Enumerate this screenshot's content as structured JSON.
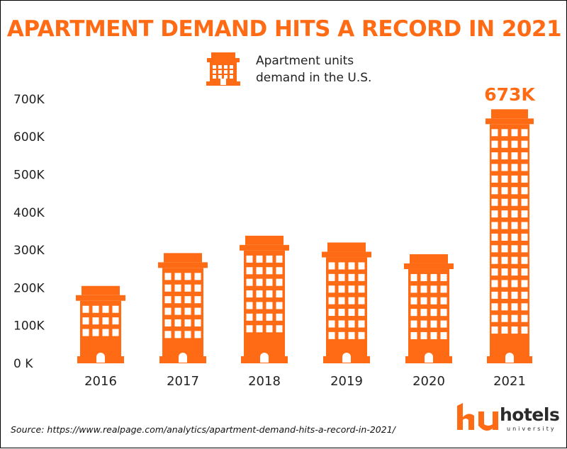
{
  "header": {
    "title": "APARTMENT DEMAND HITS A RECORD IN 2021"
  },
  "legend": {
    "line1": "Apartment units",
    "line2": "demand in the U.S.",
    "icon": "building-icon"
  },
  "footer": {
    "source": "Source: https://www.realpage.com/analytics/apartment-demand-hits-a-record-in-2021/",
    "logo_name": "hotels",
    "logo_sub": "university"
  },
  "colors": {
    "accent": "#ff6b14",
    "text": "#222222"
  },
  "chart_data": {
    "type": "bar",
    "title": "APARTMENT DEMAND HITS A RECORD IN 2021",
    "categories": [
      "2016",
      "2017",
      "2018",
      "2019",
      "2020",
      "2021"
    ],
    "series": [
      {
        "name": "Apartment units demand in the U.S.",
        "values": [
          205000,
          292000,
          338000,
          320000,
          289000,
          673000
        ]
      }
    ],
    "ylim": [
      0,
      700000
    ],
    "yticks": [
      {
        "value": 0,
        "label": "0 K"
      },
      {
        "value": 100000,
        "label": "100K"
      },
      {
        "value": 200000,
        "label": "200K"
      },
      {
        "value": 300000,
        "label": "300K"
      },
      {
        "value": 400000,
        "label": "400K"
      },
      {
        "value": 500000,
        "label": "500K"
      },
      {
        "value": 600000,
        "label": "600K"
      },
      {
        "value": 700000,
        "label": "700K"
      }
    ],
    "annotations": [
      {
        "category": "2021",
        "label": "673K"
      }
    ],
    "grid": false,
    "legend_position": "top-center"
  }
}
